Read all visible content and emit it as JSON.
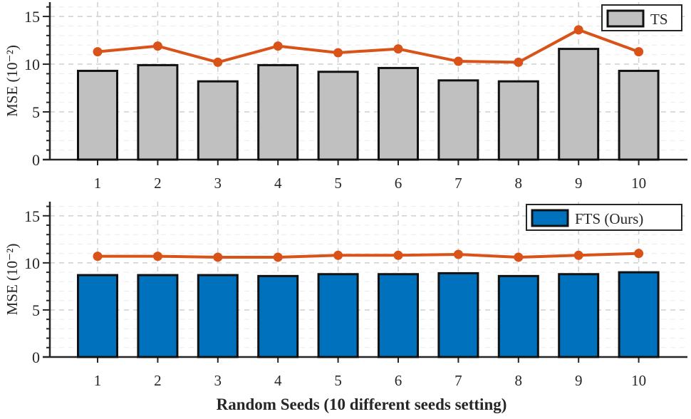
{
  "chart_data": [
    {
      "type": "bar",
      "categories": [
        "1",
        "2",
        "3",
        "4",
        "5",
        "6",
        "7",
        "8",
        "9",
        "10"
      ],
      "series": [
        {
          "name": "TS",
          "kind": "bar",
          "values": [
            9.3,
            9.9,
            8.2,
            9.9,
            9.2,
            9.6,
            8.3,
            8.2,
            11.6,
            9.3
          ],
          "color": "#c0c0c0"
        },
        {
          "kind": "line",
          "values": [
            11.3,
            11.9,
            10.2,
            11.9,
            11.2,
            11.6,
            10.3,
            10.2,
            13.6,
            11.3
          ],
          "color": "#d95319"
        }
      ],
      "ylabel": "MSE (10⁻²)",
      "xlabel": "",
      "yticks": [
        "0",
        "5",
        "10",
        "15"
      ],
      "ylim": [
        0,
        16.5
      ],
      "grid": true,
      "legend": "top-right"
    },
    {
      "type": "bar",
      "categories": [
        "1",
        "2",
        "3",
        "4",
        "5",
        "6",
        "7",
        "8",
        "9",
        "10"
      ],
      "series": [
        {
          "name": "FTS (Ours)",
          "kind": "bar",
          "values": [
            8.7,
            8.7,
            8.7,
            8.6,
            8.8,
            8.8,
            8.9,
            8.6,
            8.8,
            9.0
          ],
          "color": "#0072bd"
        },
        {
          "kind": "line",
          "values": [
            10.7,
            10.7,
            10.6,
            10.6,
            10.8,
            10.8,
            10.9,
            10.6,
            10.8,
            11.0
          ],
          "color": "#d95319"
        }
      ],
      "ylabel": "MSE (10⁻²)",
      "xlabel": "Random Seeds (10 different seeds setting)",
      "yticks": [
        "0",
        "5",
        "10",
        "15"
      ],
      "ylim": [
        0,
        16.5
      ],
      "grid": true,
      "legend": "top-right"
    }
  ]
}
